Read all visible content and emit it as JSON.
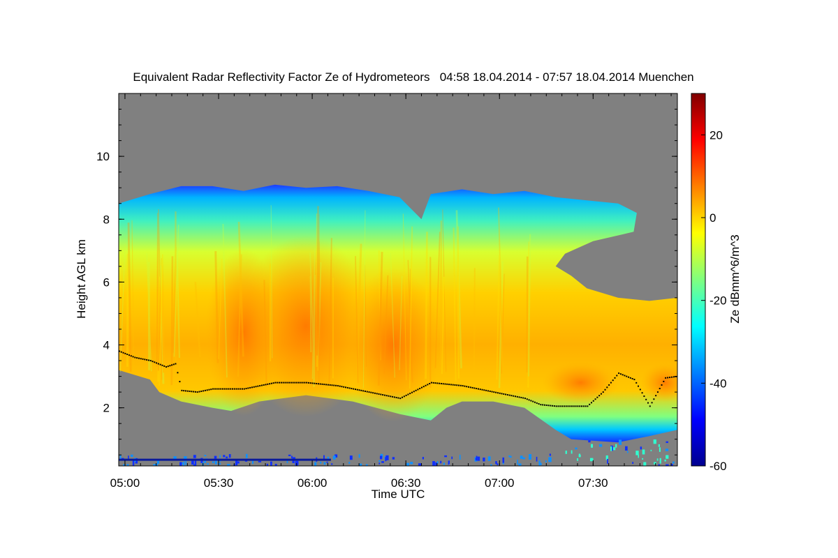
{
  "chart_data": {
    "type": "heatmap",
    "title": "Equivalent Radar Reflectivity Factor Ze of Hydrometeors   04:58 18.04.2014 - 07:57 18.04.2014 Muenchen",
    "xlabel": "Time UTC",
    "ylabel": "Height AGL km",
    "x_range_minutes_since_0458": [
      0,
      179
    ],
    "x_ticks": [
      {
        "label": "05:00",
        "min": 2
      },
      {
        "label": "05:30",
        "min": 32
      },
      {
        "label": "06:00",
        "min": 62
      },
      {
        "label": "06:30",
        "min": 92
      },
      {
        "label": "07:00",
        "min": 122
      },
      {
        "label": "07:30",
        "min": 152
      }
    ],
    "ylim": [
      0.15,
      12.0
    ],
    "y_ticks": [
      2,
      4,
      6,
      8,
      10
    ],
    "colorbar": {
      "label": "Ze dBmm^6/m^3",
      "range": [
        -60,
        30
      ],
      "ticks": [
        -60,
        -40,
        -20,
        0,
        20
      ],
      "colormap": "jet"
    },
    "background_color": "#808080",
    "cloud_top_km": [
      [
        0,
        8.5
      ],
      [
        10,
        8.8
      ],
      [
        20,
        9.05
      ],
      [
        30,
        9.05
      ],
      [
        40,
        8.9
      ],
      [
        50,
        9.1
      ],
      [
        60,
        9.0
      ],
      [
        70,
        9.05
      ],
      [
        80,
        8.9
      ],
      [
        90,
        8.7
      ],
      [
        97,
        8.0
      ],
      [
        100,
        8.8
      ],
      [
        110,
        8.95
      ],
      [
        120,
        8.8
      ],
      [
        130,
        8.9
      ],
      [
        140,
        8.7
      ],
      [
        150,
        8.6
      ],
      [
        160,
        8.5
      ],
      [
        166,
        8.2
      ],
      [
        165,
        7.6
      ],
      [
        152,
        7.3
      ],
      [
        143,
        6.9
      ],
      [
        140,
        6.5
      ],
      [
        145,
        6.2
      ],
      [
        150,
        5.8
      ],
      [
        160,
        5.5
      ],
      [
        170,
        5.4
      ],
      [
        179,
        5.5
      ]
    ],
    "cloud_base_km": [
      [
        0,
        3.2
      ],
      [
        10,
        2.9
      ],
      [
        13,
        2.5
      ],
      [
        20,
        2.2
      ],
      [
        30,
        2.0
      ],
      [
        36,
        1.9
      ],
      [
        45,
        2.2
      ],
      [
        60,
        2.4
      ],
      [
        75,
        2.2
      ],
      [
        90,
        1.8
      ],
      [
        100,
        1.6
      ],
      [
        105,
        2.0
      ],
      [
        110,
        2.2
      ],
      [
        120,
        2.2
      ],
      [
        130,
        2.0
      ],
      [
        140,
        1.3
      ],
      [
        145,
        1.0
      ],
      [
        160,
        0.9
      ],
      [
        170,
        1.1
      ],
      [
        179,
        1.3
      ]
    ],
    "core_max_dBZ": 10,
    "melting_layer_km": [
      [
        0,
        3.8
      ],
      [
        5,
        3.6
      ],
      [
        10,
        3.5
      ],
      [
        15,
        3.3
      ],
      [
        18,
        3.4
      ],
      [
        20,
        2.55
      ],
      [
        25,
        2.5
      ],
      [
        30,
        2.6
      ],
      [
        40,
        2.6
      ],
      [
        45,
        2.7
      ],
      [
        50,
        2.8
      ],
      [
        60,
        2.8
      ],
      [
        70,
        2.7
      ],
      [
        80,
        2.5
      ],
      [
        90,
        2.3
      ],
      [
        100,
        2.8
      ],
      [
        110,
        2.7
      ],
      [
        120,
        2.5
      ],
      [
        130,
        2.3
      ],
      [
        135,
        2.1
      ],
      [
        140,
        2.05
      ],
      [
        150,
        2.05
      ],
      [
        155,
        2.5
      ],
      [
        160,
        3.1
      ],
      [
        165,
        2.9
      ],
      [
        170,
        2.05
      ],
      [
        175,
        2.95
      ],
      [
        179,
        3.0
      ]
    ]
  }
}
